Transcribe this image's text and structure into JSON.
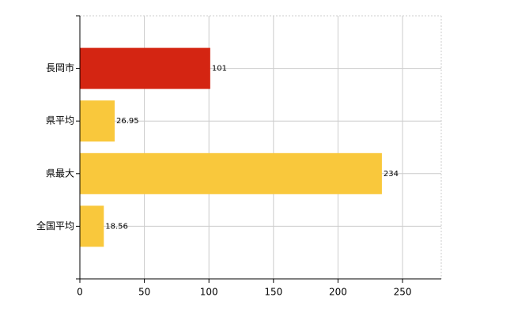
{
  "chart_data": {
    "type": "bar",
    "orientation": "horizontal",
    "categories": [
      "長岡市",
      "県平均",
      "県最大",
      "全国平均"
    ],
    "values": [
      101,
      26.95,
      234,
      18.56
    ],
    "colors": [
      "#d42512",
      "#f9c83c",
      "#f9c83c",
      "#f9c83c"
    ],
    "xlim": [
      0,
      280
    ],
    "xticks": [
      0,
      50,
      100,
      150,
      200,
      250
    ],
    "grid": true
  }
}
